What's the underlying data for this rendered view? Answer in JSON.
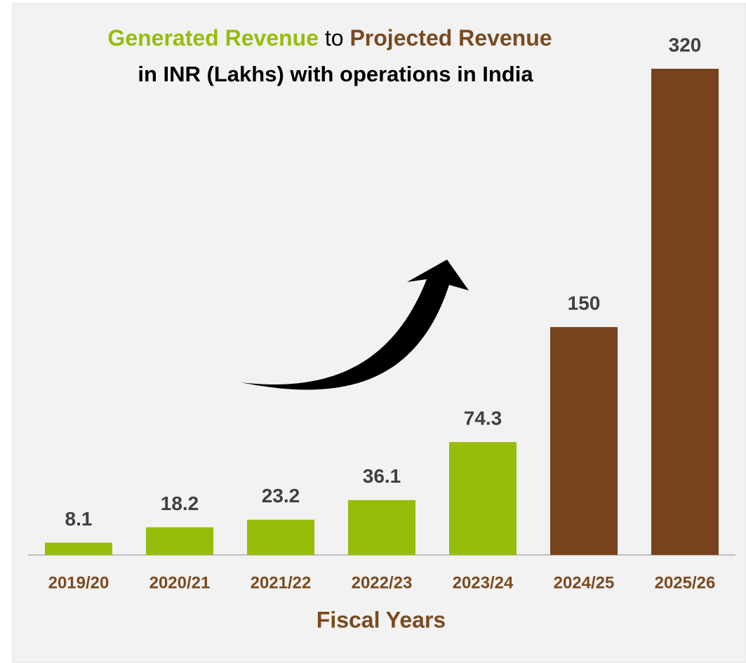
{
  "chart_data": {
    "type": "bar",
    "title": [
      "Generated Revenue",
      "to",
      "Projected Revenue"
    ],
    "subtitle": "in INR (Lakhs) with operations in India",
    "title_colors": [
      "#97bd0b",
      "#000000",
      "#7a4a1f"
    ],
    "x_label": "Fiscal Years",
    "categories": [
      "2019/20",
      "2020/21",
      "2021/22",
      "2022/23",
      "2023/24",
      "2024/25",
      "2025/26"
    ],
    "values": [
      8.1,
      18.2,
      23.2,
      36.1,
      74.3,
      150,
      320
    ],
    "value_labels": [
      "8.1",
      "18.2",
      "23.2",
      "36.1",
      "74.3",
      "150",
      "320"
    ],
    "colors": [
      "#97bd0b",
      "#97bd0b",
      "#97bd0b",
      "#97bd0b",
      "#97bd0b",
      "#76431c",
      "#76431c"
    ],
    "ylim": [
      0,
      320
    ]
  }
}
